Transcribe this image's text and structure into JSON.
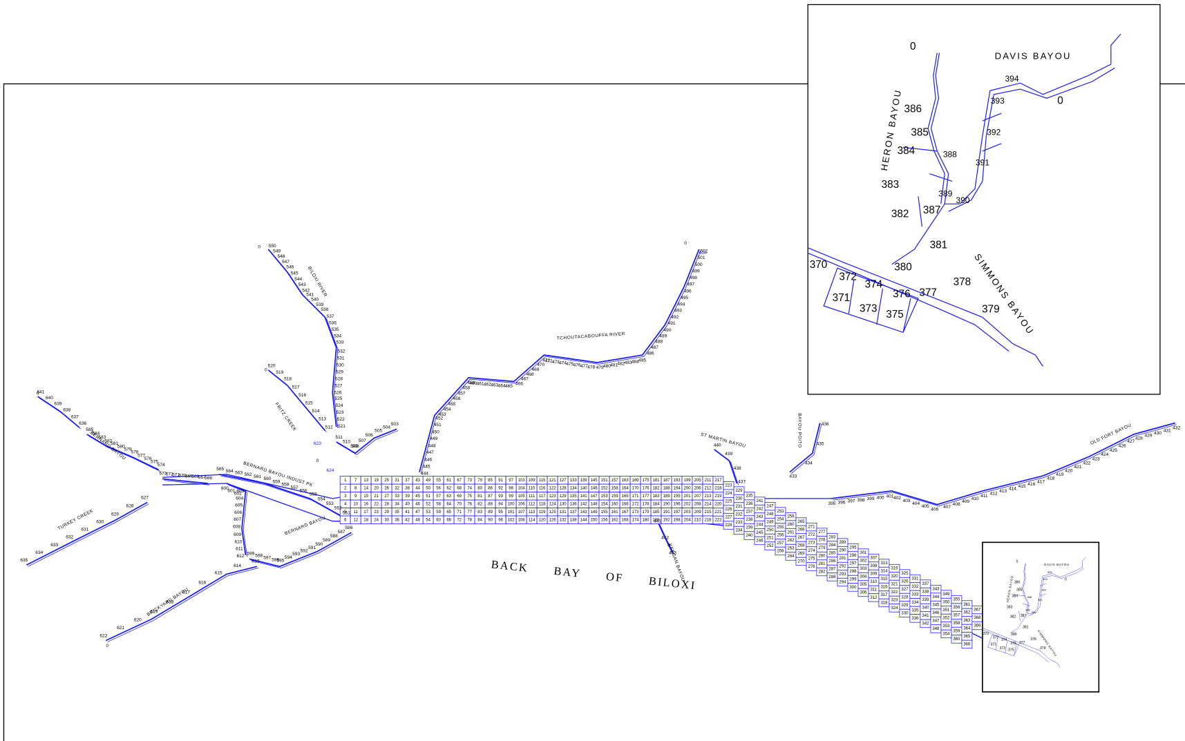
{
  "map": {
    "title": "BACK BAY OF BILOXI",
    "place_names": [
      "TCHOUTACABOUFFA RIVER",
      "BILOXI RIVER",
      "FRITZ CREEK",
      "BERNARD BAYOU",
      "BERNARD BAYOU INDUST PK",
      "TURKEY CREEK",
      "BRICKYARD BAYOU",
      "BERNARD BAYOU",
      "ST MARTIN BAYOU",
      "BAYOU POITO",
      "KEEGAN BAYOU",
      "OLD FORT BAYOU"
    ],
    "zeros": [
      0,
      0,
      0,
      0,
      0,
      0,
      0
    ],
    "bay_cells": [
      1,
      2,
      3,
      4,
      5,
      6,
      7,
      8,
      9,
      10,
      11,
      12,
      13,
      14,
      15,
      16,
      17,
      18,
      19,
      20,
      21,
      22,
      23,
      24,
      25,
      26,
      27,
      28,
      29,
      30,
      31,
      32,
      33,
      34,
      35,
      36,
      37,
      38,
      39,
      40,
      41,
      42,
      43,
      44,
      45,
      46,
      47,
      48,
      49,
      50,
      51,
      52,
      53,
      54,
      55,
      56,
      57,
      58,
      59,
      60,
      61,
      62,
      63,
      64,
      65,
      66,
      67,
      68,
      69,
      70,
      71,
      72,
      73,
      74,
      75,
      76,
      77,
      78,
      79,
      80,
      81,
      82,
      83,
      84,
      85,
      86,
      87,
      88,
      89,
      90,
      91,
      92,
      93,
      94,
      95,
      96,
      97,
      98,
      99,
      100,
      101,
      102,
      103,
      104,
      105,
      106,
      107,
      108,
      109,
      110,
      111,
      112,
      113,
      114,
      115,
      116,
      117,
      118,
      119,
      120,
      121,
      122,
      123,
      124,
      125,
      126,
      127,
      128,
      129,
      130,
      131,
      132,
      133,
      134,
      135,
      136,
      137,
      138,
      139,
      140,
      141,
      142,
      143,
      144,
      145,
      146,
      147,
      148,
      149,
      150,
      151,
      152,
      153,
      154,
      155,
      156,
      157,
      158,
      159,
      160,
      161,
      162,
      163,
      164,
      165,
      166,
      167,
      168,
      169,
      170,
      171,
      172,
      173,
      174,
      175,
      176,
      177,
      178,
      179,
      180,
      181,
      182,
      183,
      184,
      185,
      186,
      187,
      188,
      189,
      190,
      191,
      192,
      193,
      194,
      195,
      196,
      197,
      198,
      199,
      200,
      201,
      202,
      203,
      204,
      205,
      206,
      207,
      208,
      209,
      210,
      211,
      212,
      213,
      214,
      215,
      216,
      217,
      218,
      219,
      220,
      221,
      222,
      223,
      224,
      225,
      226,
      227,
      228,
      229,
      230,
      231,
      232,
      233,
      234,
      235,
      236,
      237,
      238,
      239,
      240,
      241,
      242,
      243,
      244,
      245,
      246,
      247,
      248,
      249,
      250,
      251,
      252,
      253,
      254,
      255,
      256,
      257,
      258,
      259,
      260,
      261,
      262,
      263,
      264,
      265,
      266,
      267,
      268,
      269,
      270,
      271,
      272,
      273,
      274,
      275,
      276,
      277,
      278,
      279,
      280,
      281,
      282,
      283,
      284,
      285,
      286,
      287,
      288,
      289,
      290,
      291,
      292,
      293,
      294,
      295,
      296,
      297,
      298,
      299,
      300,
      301,
      302,
      303,
      304,
      305,
      306,
      307,
      308,
      309,
      310,
      311,
      312,
      313,
      314,
      315,
      316,
      317,
      318,
      319,
      320,
      321,
      322,
      323,
      324,
      325,
      326,
      327,
      328,
      329,
      330,
      331,
      332,
      333,
      334,
      335,
      336,
      337,
      338,
      339,
      340,
      341,
      342,
      343,
      344,
      345,
      346,
      347,
      348,
      349,
      350,
      351,
      352,
      353,
      354,
      355,
      356,
      357,
      358,
      359,
      360,
      361,
      362,
      363,
      364,
      365,
      366,
      367,
      368,
      369
    ],
    "reaches": [
      {
        "segments": [
          395,
          396,
          397,
          398,
          399,
          400,
          401,
          402,
          403,
          404,
          405,
          406,
          407,
          408,
          409,
          410,
          411,
          412,
          413,
          414,
          415,
          416,
          417,
          418,
          419,
          420,
          421,
          422,
          423,
          424,
          425,
          426,
          427,
          428,
          429,
          430,
          431,
          432
        ]
      },
      {
        "segments": [
          433,
          434,
          435,
          436
        ]
      },
      {
        "segments": [
          437,
          438,
          439,
          440
        ]
      },
      {
        "segments": [
          441,
          442,
          443
        ]
      },
      {
        "segments": [
          444,
          445,
          446,
          447,
          448,
          449,
          450,
          451,
          452,
          453,
          454,
          455,
          456,
          457,
          458,
          459,
          460,
          461,
          462,
          463,
          464,
          465,
          466,
          467,
          468,
          469,
          470,
          471,
          472,
          473,
          474,
          475,
          476,
          477,
          478,
          479,
          480,
          481,
          482,
          483,
          484,
          485,
          486,
          487,
          488,
          489,
          490,
          491,
          492,
          493,
          494,
          495,
          496,
          497,
          498,
          499,
          500,
          501,
          502
        ]
      },
      {
        "segments": [
          503,
          504,
          505,
          506,
          507,
          508,
          509,
          510,
          511
        ]
      },
      {
        "segments": [
          512,
          513,
          514,
          515,
          516,
          517,
          518,
          519,
          520
        ]
      },
      {
        "segments": [
          521,
          522,
          523,
          524,
          525,
          526,
          527,
          528,
          529,
          530,
          531,
          532,
          533,
          534,
          535,
          536,
          537,
          538,
          539,
          540,
          541,
          542,
          543,
          544,
          545,
          546,
          547,
          548,
          549,
          550
        ]
      },
      {
        "segments": [
          551,
          552,
          553,
          554,
          555,
          556,
          557,
          558,
          559,
          560,
          561,
          562,
          563,
          564,
          565
        ]
      },
      {
        "segments": [
          566,
          567,
          568,
          569,
          570,
          571,
          572,
          573
        ]
      },
      {
        "segments": [
          574,
          575,
          576,
          577,
          578,
          579,
          580,
          581,
          582,
          583,
          584,
          585
        ]
      },
      {
        "segments": [
          586,
          587,
          588,
          589,
          590,
          591,
          592,
          593,
          594,
          595,
          596,
          597,
          598,
          599
        ]
      },
      {
        "segments": [
          600,
          601,
          602,
          603,
          604,
          605,
          606,
          607,
          608,
          609,
          610,
          611,
          612
        ]
      },
      {
        "segments": [
          613,
          614,
          615,
          616,
          617,
          618,
          619,
          620,
          621,
          622
        ]
      },
      {
        "segments": [
          623,
          624,
          626
        ]
      },
      {
        "segments": [
          627,
          628,
          629,
          630,
          631,
          632,
          633,
          634,
          635
        ]
      },
      {
        "segments": [
          636,
          637,
          638,
          639,
          640,
          641
        ]
      }
    ]
  },
  "inset": {
    "names": [
      "DAVIS BAYOU",
      "HERON BAYOU",
      "SIMMONS BAYOU"
    ],
    "segments": [
      370,
      371,
      372,
      373,
      374,
      375,
      376,
      377,
      378,
      379,
      380,
      381,
      382,
      383,
      384,
      385,
      386,
      387,
      388,
      389,
      390,
      391,
      392,
      393,
      394
    ],
    "zeros": [
      0,
      0
    ]
  }
}
